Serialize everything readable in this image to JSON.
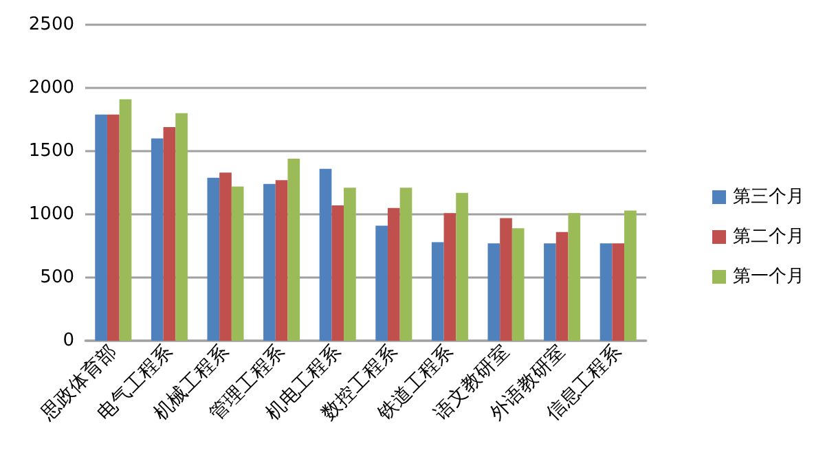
{
  "chart_data": {
    "type": "bar",
    "categories": [
      "思政体育部",
      "电气工程系",
      "机械工程系",
      "管理工程系",
      "机电工程系",
      "数控工程系",
      "铁道工程系",
      "语文教研室",
      "外语教研室",
      "信息工程系"
    ],
    "series": [
      {
        "name": "第三个月",
        "color": "#4f81bd",
        "values": [
          1790,
          1600,
          1290,
          1240,
          1360,
          910,
          780,
          770,
          770,
          770
        ]
      },
      {
        "name": "第二个月",
        "color": "#c0504d",
        "values": [
          1790,
          1690,
          1330,
          1270,
          1070,
          1050,
          1010,
          970,
          860,
          770
        ]
      },
      {
        "name": "第一个月",
        "color": "#9bbb59",
        "values": [
          1910,
          1800,
          1220,
          1440,
          1210,
          1210,
          1170,
          890,
          1010,
          1030
        ]
      }
    ],
    "ylim": [
      0,
      2500
    ],
    "yticks": [
      0,
      500,
      1000,
      1500,
      2000,
      2500
    ],
    "grid": "y",
    "legend": "right"
  }
}
